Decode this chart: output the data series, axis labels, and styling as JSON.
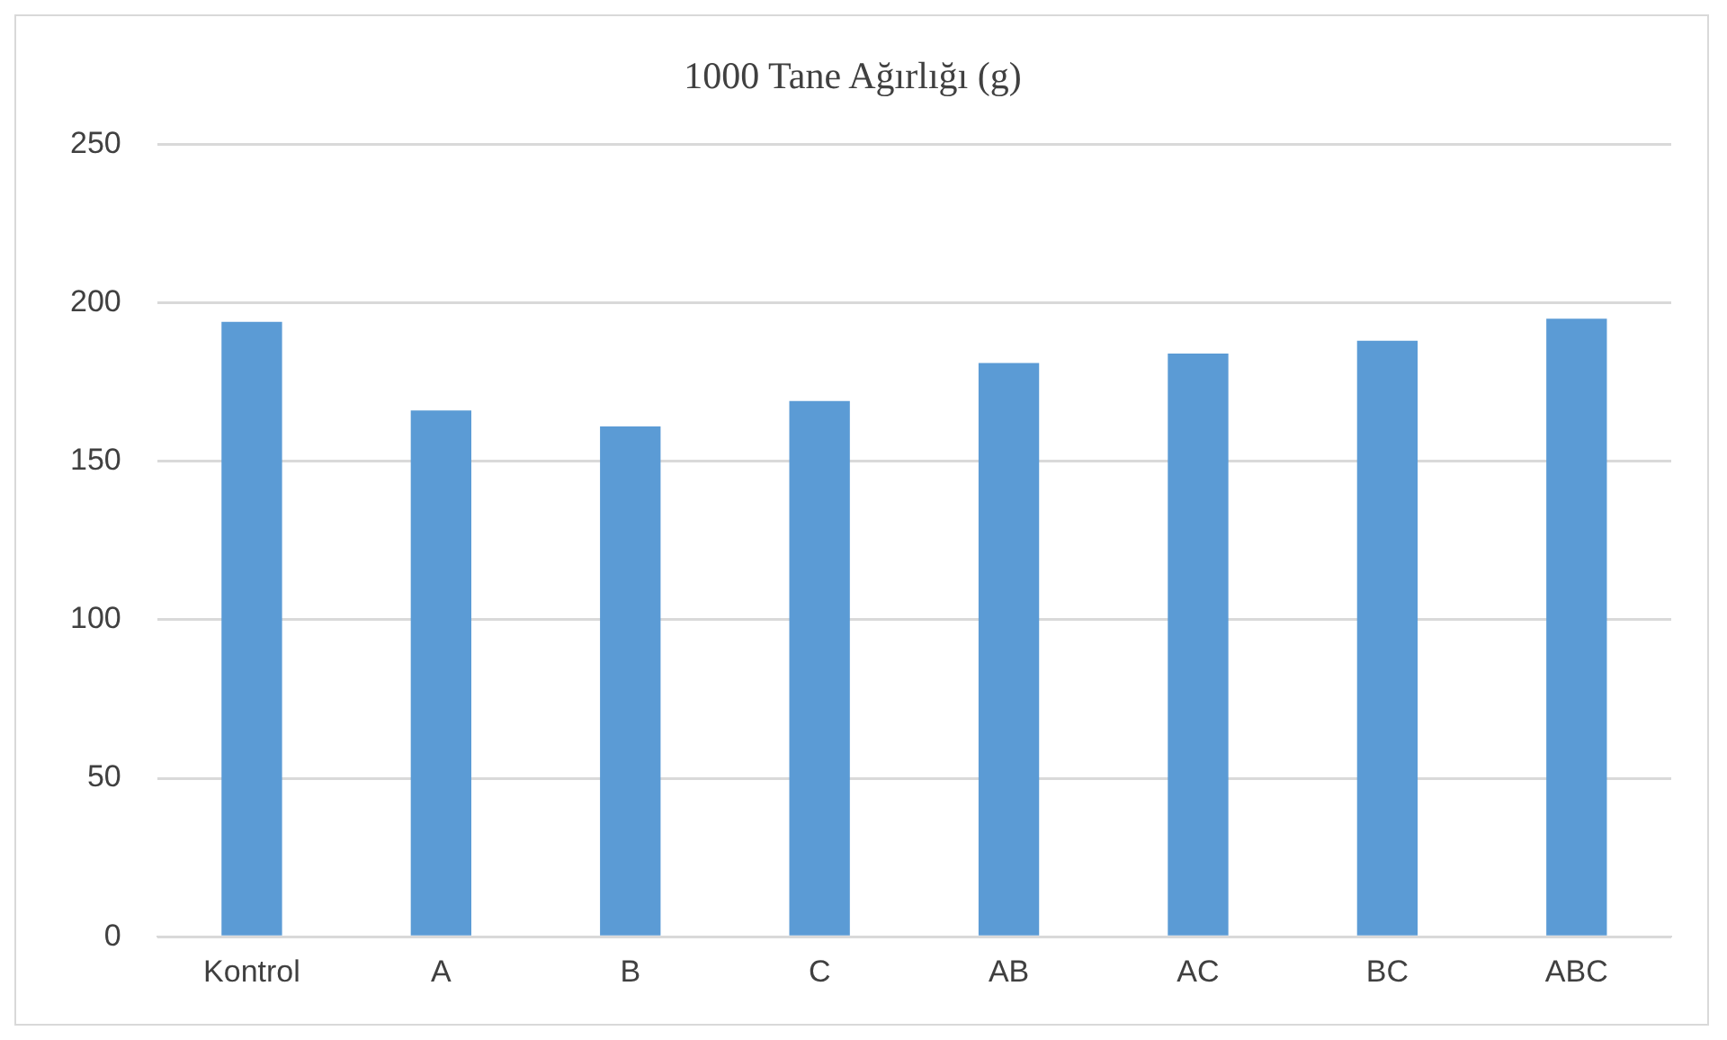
{
  "chart_data": {
    "type": "bar",
    "title": "1000 Tane Ağırlığı (g)",
    "categories": [
      "Kontrol",
      "A",
      "B",
      "C",
      "AB",
      "AC",
      "BC",
      "ABC"
    ],
    "values": [
      194,
      166,
      161,
      169,
      181,
      184,
      188,
      195
    ],
    "color": "#5b9bd5",
    "ylim": [
      0,
      250
    ],
    "yticks": [
      0,
      50,
      100,
      150,
      200,
      250
    ],
    "grid": "y"
  }
}
